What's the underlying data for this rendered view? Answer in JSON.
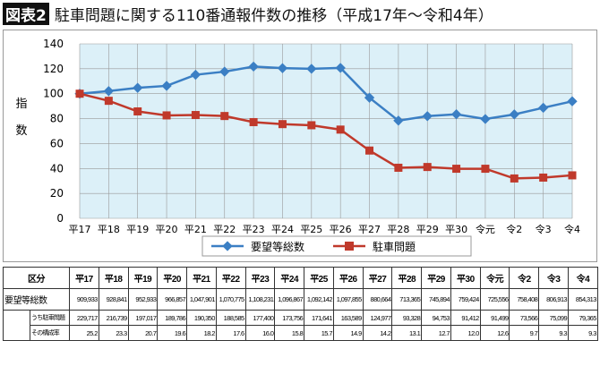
{
  "title": {
    "badge": "図表2",
    "text": "駐車問題に関する110番通報件数の推移（平成17年～令和4年）"
  },
  "colors": {
    "total": "#3b7fc4",
    "parking": "#c0392b",
    "plot_bg": "#dcf0f8"
  },
  "chart_data": {
    "type": "line",
    "ylabel": "指数",
    "ylim": [
      0,
      140
    ],
    "yticks": [
      0,
      20,
      40,
      60,
      80,
      100,
      120,
      140
    ],
    "grid": true,
    "legend_position": "bottom",
    "categories": [
      "平17",
      "平18",
      "平19",
      "平20",
      "平21",
      "平22",
      "平23",
      "平24",
      "平25",
      "平26",
      "平27",
      "平28",
      "平29",
      "平30",
      "令元",
      "令2",
      "令3",
      "令4"
    ],
    "series": [
      {
        "name": "要望等総数",
        "values": [
          100,
          102.1,
          104.7,
          106.3,
          115.2,
          117.7,
          121.8,
          120.5,
          120.0,
          120.7,
          96.8,
          78.4,
          82.0,
          83.5,
          79.7,
          83.4,
          88.7,
          93.9
        ]
      },
      {
        "name": "駐車問題",
        "values": [
          100,
          94.3,
          85.8,
          82.6,
          82.9,
          82.1,
          77.2,
          75.6,
          74.7,
          71.2,
          54.4,
          40.6,
          41.2,
          39.8,
          39.8,
          32.0,
          32.7,
          34.5
        ]
      }
    ]
  },
  "table": {
    "header": "区分",
    "rows": [
      {
        "label": "要望等総数",
        "values": [
          "909,933",
          "928,841",
          "952,933",
          "966,857",
          "1,047,901",
          "1,070,775",
          "1,108,231",
          "1,096,867",
          "1,092,142",
          "1,097,855",
          "880,664",
          "713,365",
          "745,894",
          "759,424",
          "725,556",
          "758,408",
          "806,913",
          "854,313"
        ]
      },
      {
        "label": "うち駐車問題",
        "values": [
          "229,717",
          "216,739",
          "197,017",
          "189,786",
          "190,350",
          "188,585",
          "177,400",
          "173,756",
          "171,641",
          "163,589",
          "124,977",
          "93,328",
          "94,753",
          "91,412",
          "91,499",
          "73,566",
          "75,099",
          "79,365"
        ]
      },
      {
        "label": "その構成率",
        "values": [
          "25.2",
          "23.3",
          "20.7",
          "19.6",
          "18.2",
          "17.6",
          "16.0",
          "15.8",
          "15.7",
          "14.9",
          "14.2",
          "13.1",
          "12.7",
          "12.0",
          "12.6",
          "9.7",
          "9.3",
          "9.3"
        ]
      }
    ]
  }
}
